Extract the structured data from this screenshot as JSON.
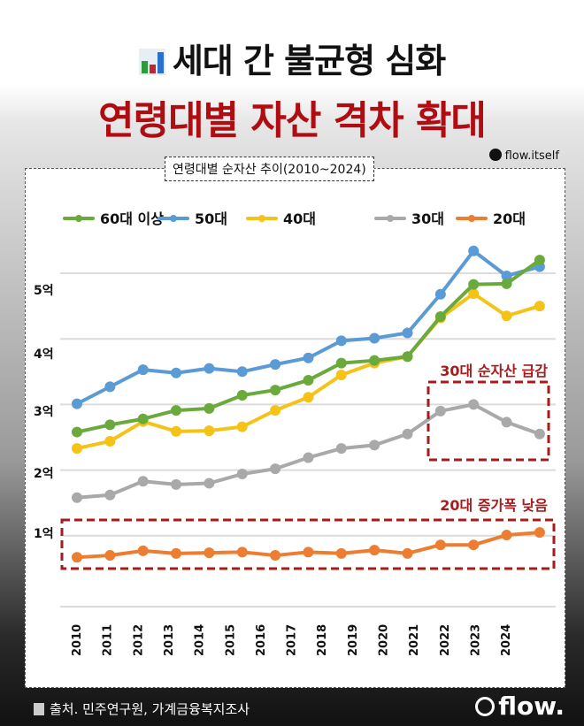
{
  "header": {
    "title": "세대 간 불균형 심화",
    "subtitle": "연령대별 자산 격차 확대",
    "handle": "flow.itself"
  },
  "footer": {
    "source": "출처. 민주연구원, 가계금융복지조사",
    "logo": "flow."
  },
  "chart_data": {
    "type": "line",
    "title": "연령대별 순자산 추이(2010~2024)",
    "categories": [
      "2010",
      "2011",
      "2012",
      "2013",
      "2014",
      "2015",
      "2016",
      "2017",
      "2018",
      "2019",
      "2020",
      "2021",
      "2022",
      "2023",
      "2024"
    ],
    "y_ticks": [
      "1억",
      "2억",
      "3억",
      "4억",
      "5억"
    ],
    "ylim": [
      0,
      5.5
    ],
    "grid": true,
    "legend_position": "top",
    "series": [
      {
        "name": "60대 이상",
        "color": "#6aaa3c",
        "values": [
          2.58,
          2.69,
          2.78,
          2.91,
          2.94,
          3.14,
          3.22,
          3.37,
          3.63,
          3.67,
          3.73,
          4.34,
          4.83,
          4.84,
          5.2
        ]
      },
      {
        "name": "50대",
        "color": "#5b9bd5",
        "values": [
          3.01,
          3.27,
          3.53,
          3.48,
          3.55,
          3.5,
          3.61,
          3.71,
          3.97,
          4.01,
          4.09,
          4.68,
          5.34,
          4.96,
          5.1
        ]
      },
      {
        "name": "40대",
        "color": "#f5c318",
        "values": [
          2.33,
          2.44,
          2.74,
          2.59,
          2.6,
          2.66,
          2.91,
          3.11,
          3.45,
          3.63,
          3.73,
          4.32,
          4.69,
          4.35,
          4.5
        ]
      },
      {
        "name": "30대",
        "color": "#a9a9a9",
        "values": [
          1.58,
          1.62,
          1.83,
          1.78,
          1.8,
          1.94,
          2.02,
          2.19,
          2.33,
          2.38,
          2.55,
          2.9,
          3.0,
          2.73,
          2.55
        ]
      },
      {
        "name": "20대",
        "color": "#ed7d31",
        "values": [
          0.67,
          0.7,
          0.77,
          0.73,
          0.74,
          0.75,
          0.7,
          0.75,
          0.73,
          0.78,
          0.73,
          0.86,
          0.86,
          1.01,
          1.05
        ]
      }
    ],
    "annotations": [
      {
        "text": "30대 순자산 급감",
        "color": "#a61c1c"
      },
      {
        "text": "20대 증가폭 낮음",
        "color": "#a61c1c"
      }
    ]
  }
}
